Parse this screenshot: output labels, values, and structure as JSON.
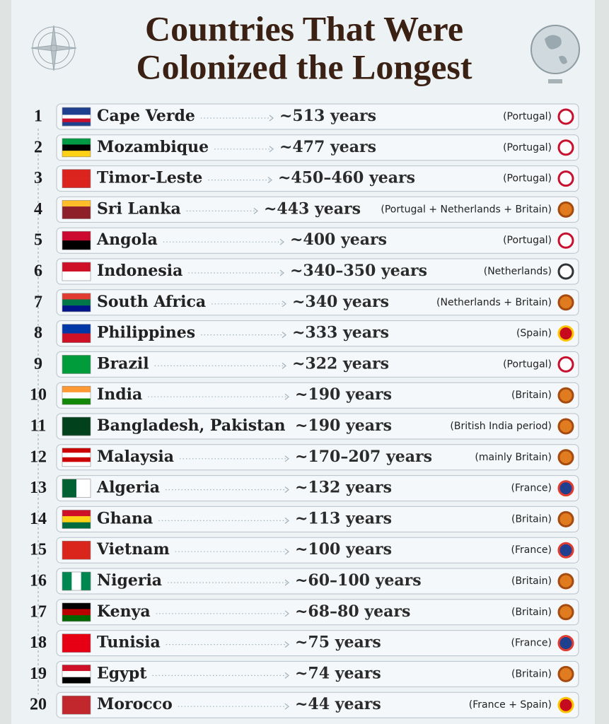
{
  "title_line1": "Countries That Were",
  "title_line2": "Colonized the Longest",
  "rows": [
    {
      "rank": 1,
      "country": "Cape Verde",
      "duration": "~513 years",
      "colonizer": "(Portugal)"
    },
    {
      "rank": 2,
      "country": "Mozambique",
      "duration": "~477 years",
      "colonizer": "(Portugal)"
    },
    {
      "rank": 3,
      "country": "Timor-Leste",
      "duration": "~450–460 years",
      "colonizer": "(Portugal)"
    },
    {
      "rank": 4,
      "country": "Sri Lanka",
      "duration": "~443 years",
      "colonizer": "(Portugal + Netherlands + Britain)"
    },
    {
      "rank": 5,
      "country": "Angola",
      "duration": "~400 years",
      "colonizer": "(Portugal)"
    },
    {
      "rank": 6,
      "country": "Indonesia",
      "duration": "~340–350 years",
      "colonizer": "(Netherlands)"
    },
    {
      "rank": 7,
      "country": "South Africa",
      "duration": "~340 years",
      "colonizer": "(Netherlands + Britain)"
    },
    {
      "rank": 8,
      "country": "Philippines",
      "duration": "~333 years",
      "colonizer": "(Spain)"
    },
    {
      "rank": 9,
      "country": "Brazil",
      "duration": "~322 years",
      "colonizer": "(Portugal)"
    },
    {
      "rank": 10,
      "country": "India",
      "duration": "~190 years",
      "colonizer": "(Britain)"
    },
    {
      "rank": 11,
      "country": "Bangladesh, Pakistan",
      "duration": "~190 years",
      "colonizer": "(British India period)"
    },
    {
      "rank": 12,
      "country": "Malaysia",
      "duration": "~170–207 years",
      "colonizer": "(mainly Britain)"
    },
    {
      "rank": 13,
      "country": "Algeria",
      "duration": "~132 years",
      "colonizer": "(France)"
    },
    {
      "rank": 14,
      "country": "Ghana",
      "duration": "~113 years",
      "colonizer": "(Britain)"
    },
    {
      "rank": 15,
      "country": "Vietnam",
      "duration": "~100 years",
      "colonizer": "(France)"
    },
    {
      "rank": 16,
      "country": "Nigeria",
      "duration": "~60–100 years",
      "colonizer": "(Britain)"
    },
    {
      "rank": 17,
      "country": "Kenya",
      "duration": "~68–80 years",
      "colonizer": "(Britain)"
    },
    {
      "rank": 18,
      "country": "Tunisia",
      "duration": "~75 years",
      "colonizer": "(France)"
    },
    {
      "rank": 19,
      "country": "Egypt",
      "duration": "~74 years",
      "colonizer": "(Britain)"
    },
    {
      "rank": 20,
      "country": "Morocco",
      "duration": "~44 years",
      "colonizer": "(France + Spain)"
    }
  ]
}
